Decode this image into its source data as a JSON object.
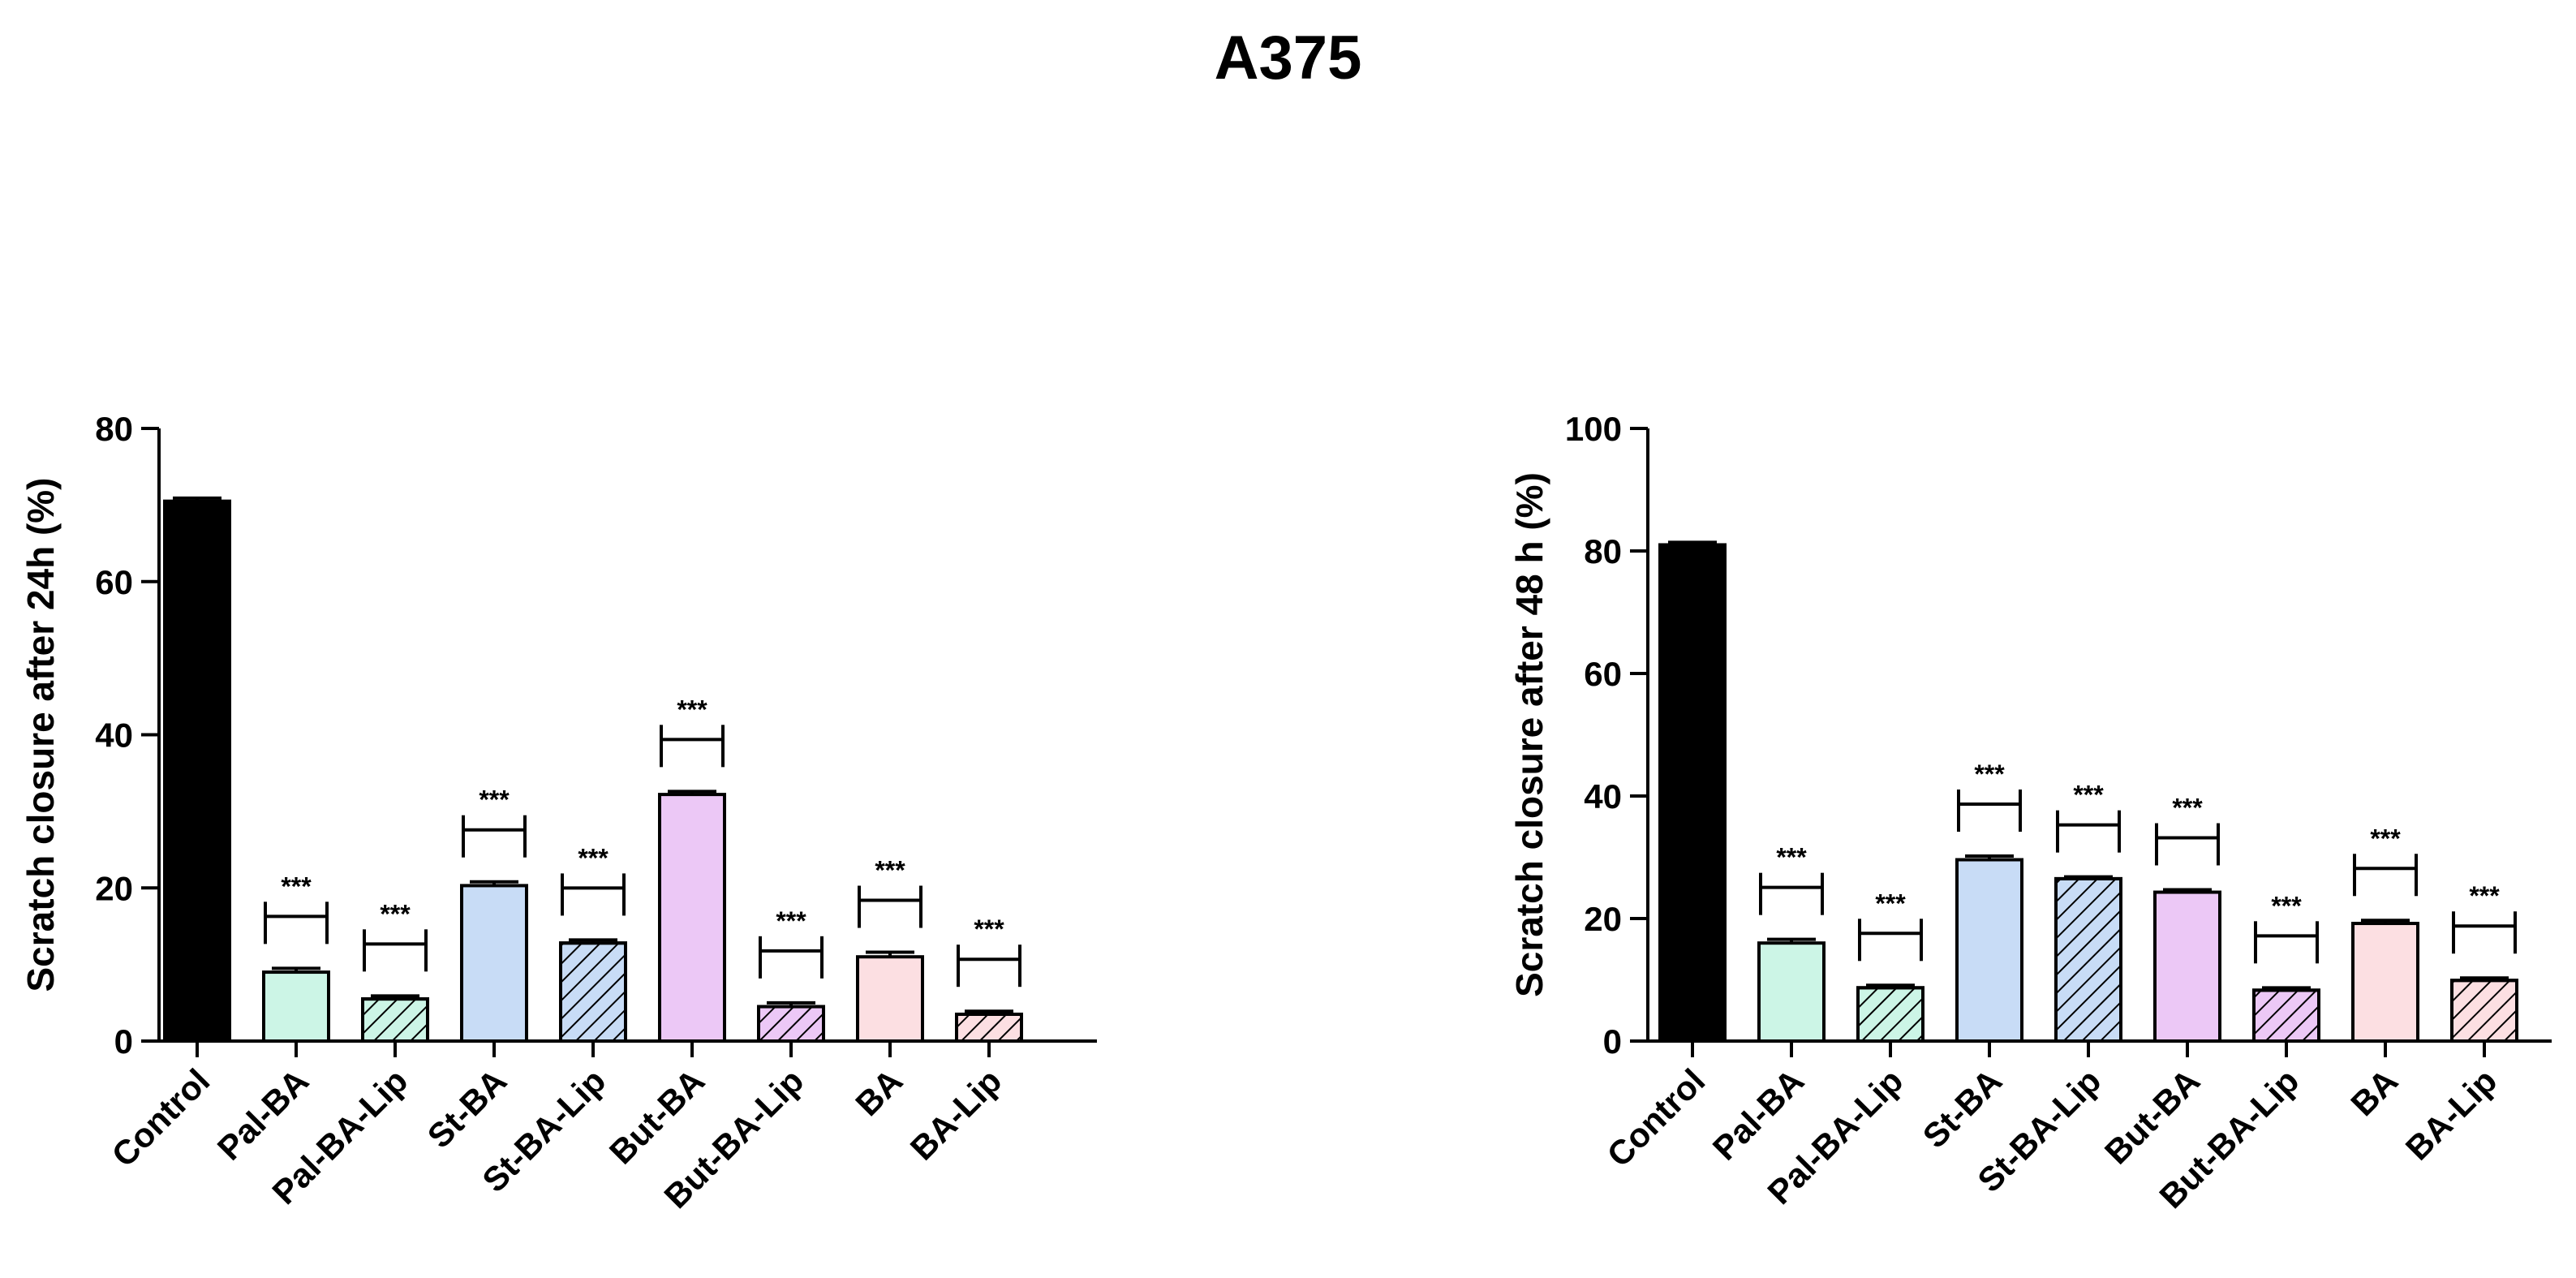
{
  "figure_title": "A375",
  "chart_data": [
    {
      "type": "bar",
      "ylabel": "Scratch closure after 24h (%)",
      "ylim": [
        0,
        80
      ],
      "yticks": [
        0,
        20,
        40,
        60,
        80
      ],
      "categories": [
        "Control",
        "Pal-BA",
        "Pal-BA-Lip",
        "St-BA",
        "St-BA-Lip",
        "But-BA",
        "But-BA-Lip",
        "BA",
        "BA-Lip"
      ],
      "values": [
        70.5,
        9.0,
        5.5,
        20.3,
        12.8,
        32.2,
        4.5,
        11.0,
        3.5
      ],
      "errors": [
        0.4,
        0.5,
        0.4,
        0.5,
        0.4,
        0.4,
        0.5,
        0.6,
        0.4
      ],
      "colors": [
        "#000000",
        "#ccf5e6",
        "#ccf5e6",
        "#c8dcf6",
        "#c8dcf6",
        "#ecc8f6",
        "#ecc8f6",
        "#fcdfe2",
        "#fcdfe2"
      ],
      "hatched": [
        false,
        false,
        true,
        false,
        true,
        false,
        true,
        false,
        true
      ],
      "significance": [
        "",
        "***",
        "***",
        "***",
        "***",
        "***",
        "***",
        "***",
        "***"
      ]
    },
    {
      "type": "bar",
      "ylabel": "Scratch closure after 48 h (%)",
      "ylim": [
        0,
        100
      ],
      "yticks": [
        0,
        20,
        40,
        60,
        80,
        100
      ],
      "categories": [
        "Control",
        "Pal-BA",
        "Pal-BA-Lip",
        "St-BA",
        "St-BA-Lip",
        "But-BA",
        "But-BA-Lip",
        "BA",
        "BA-Lip"
      ],
      "values": [
        81.0,
        16.0,
        8.7,
        29.6,
        26.5,
        24.3,
        8.3,
        19.2,
        9.9
      ],
      "errors": [
        0.4,
        0.6,
        0.4,
        0.6,
        0.3,
        0.4,
        0.4,
        0.5,
        0.4
      ],
      "colors": [
        "#000000",
        "#ccf5e6",
        "#ccf5e6",
        "#c8dcf6",
        "#c8dcf6",
        "#ecc8f6",
        "#ecc8f6",
        "#fcdfe2",
        "#fcdfe2"
      ],
      "hatched": [
        false,
        false,
        true,
        false,
        true,
        false,
        true,
        false,
        true
      ],
      "significance": [
        "",
        "***",
        "***",
        "***",
        "***",
        "***",
        "***",
        "***",
        "***"
      ]
    }
  ]
}
